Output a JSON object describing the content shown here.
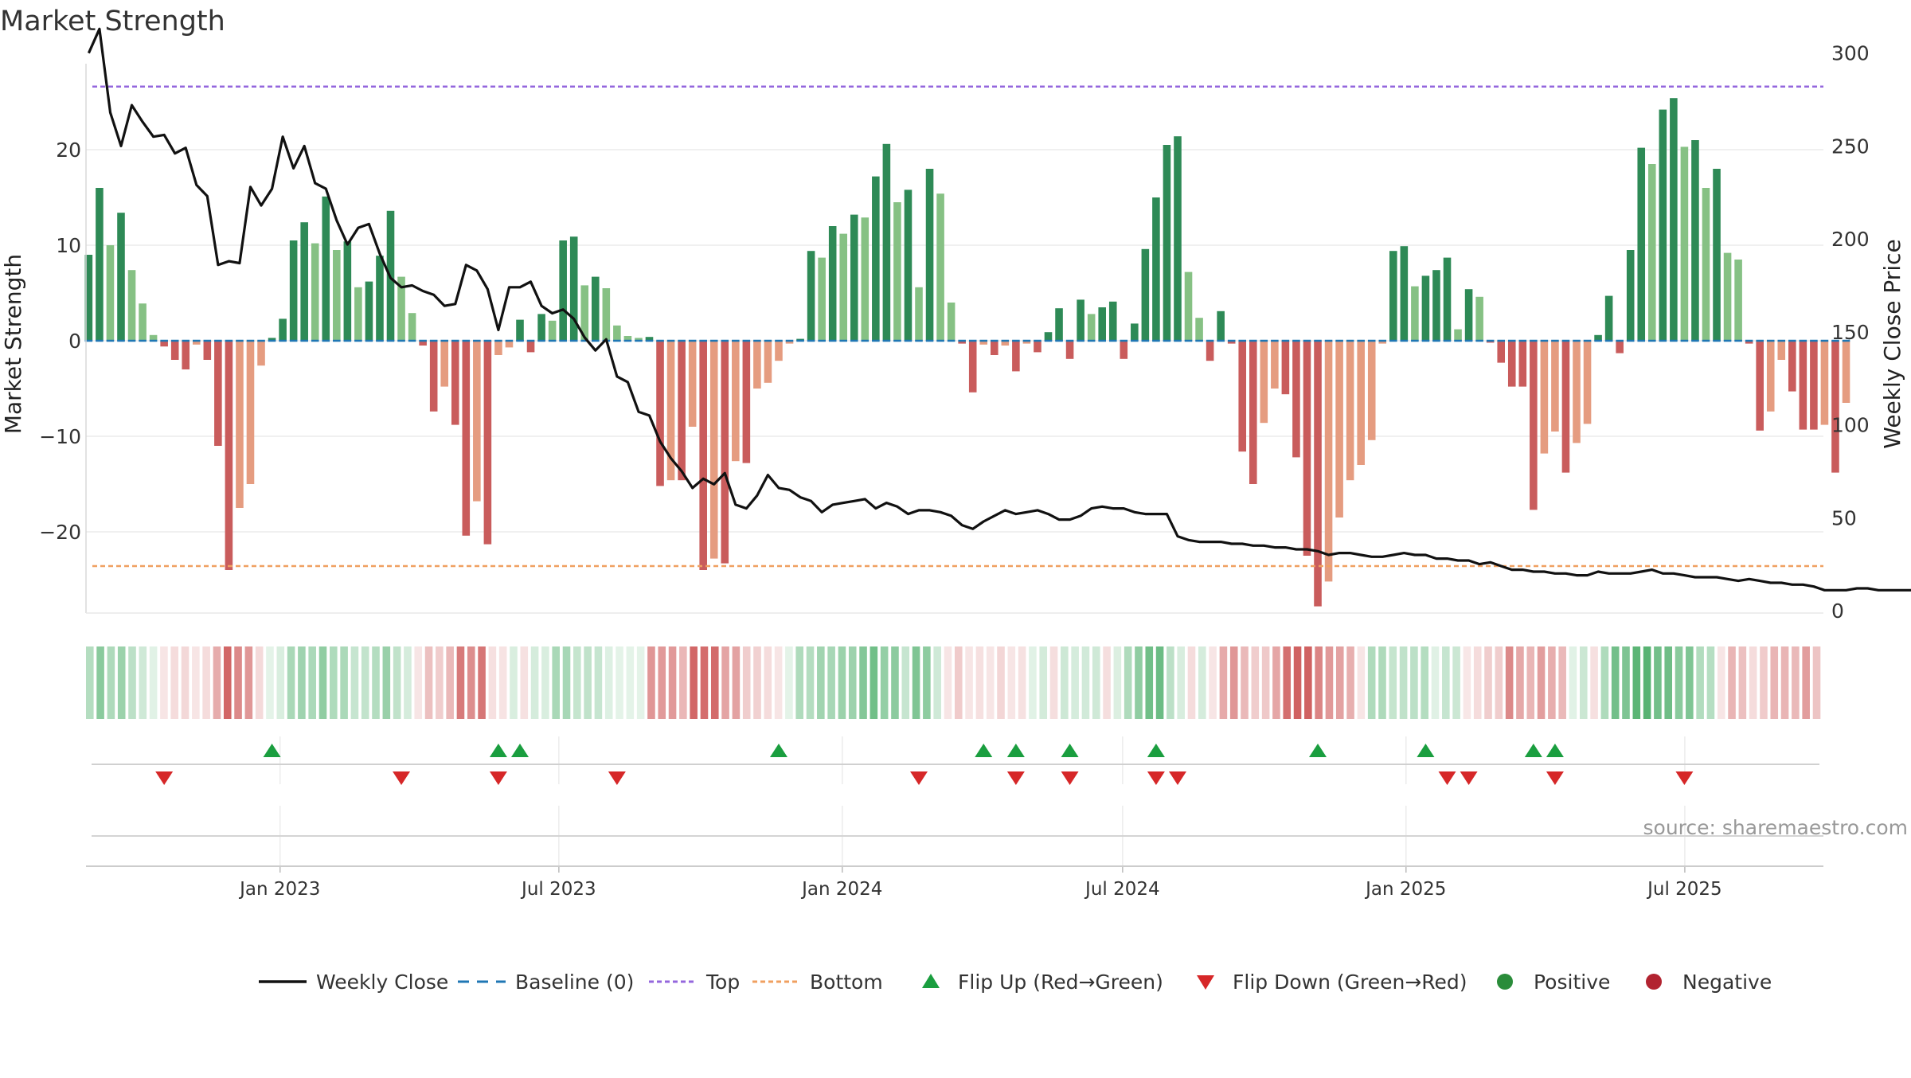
{
  "chart_data": {
    "type": "bar",
    "title": "Market Strength",
    "ylabel_left": "Market Strength",
    "ylabel_right": "Weekly Close Price",
    "ylim_left": [
      -28.5,
      29
    ],
    "ylim_right": [
      0,
      320
    ],
    "yticks_left": [
      20,
      10,
      0,
      -10,
      -20
    ],
    "ytick_labels_left": [
      "20",
      "10",
      "0",
      "−10",
      "−20"
    ],
    "yticks_right": [
      300,
      250,
      200,
      150,
      100,
      50,
      0
    ],
    "x_start": "2022-08-28",
    "x_end": "2025-09-29",
    "x_tick_dates": [
      "2023-01-01",
      "2023-07-01",
      "2024-01-01",
      "2024-07-01",
      "2025-01-01",
      "2025-07-01"
    ],
    "x_tick_labels": [
      "Jan 2023",
      "Jul 2023",
      "Jan 2024",
      "Jul 2024",
      "Jan 2025",
      "Jul 2025"
    ],
    "first_week": "2022-08-29",
    "strength": [
      9,
      16,
      10,
      13.4,
      7.4,
      3.9,
      0.6,
      -0.6,
      -2,
      -3,
      -0.4,
      -2,
      -11,
      -24,
      -17.5,
      -15,
      -2.6,
      0.3,
      2.3,
      10.5,
      12.4,
      10.2,
      15.1,
      9.5,
      10.4,
      5.6,
      6.2,
      8.9,
      13.6,
      6.7,
      2.9,
      -0.5,
      -7.4,
      -4.8,
      -8.8,
      -20.4,
      -16.8,
      -21.3,
      -1.5,
      -0.7,
      2.2,
      -1.2,
      2.8,
      2.1,
      10.5,
      10.9,
      5.8,
      6.7,
      5.5,
      1.6,
      0.5,
      0.3,
      0.4,
      -15.2,
      -14.6,
      -14.6,
      -9,
      -24,
      -22.8,
      -23.3,
      -12.6,
      -12.8,
      -5,
      -4.4,
      -2.1,
      -0.3,
      0.2,
      9.4,
      8.7,
      12,
      11.2,
      13.2,
      12.9,
      17.2,
      20.6,
      14.5,
      15.8,
      5.6,
      18,
      15.4,
      4,
      -0.3,
      -5.4,
      -0.4,
      -1.5,
      -0.5,
      -3.2,
      -0.3,
      -1.2,
      0.9,
      3.4,
      -1.9,
      4.3,
      2.8,
      3.5,
      4.1,
      -1.9,
      1.8,
      9.6,
      15,
      20.5,
      21.4,
      7.2,
      2.4,
      -2.1,
      3.1,
      -0.3,
      -11.6,
      -15,
      -8.6,
      -5,
      -5.6,
      -12.2,
      -22.5,
      -27.8,
      -25.2,
      -18.5,
      -14.6,
      -13,
      -10.4,
      -0.3,
      9.4,
      9.9,
      5.7,
      6.8,
      7.4,
      8.7,
      1.2,
      5.4,
      4.6,
      -0.2,
      -2.3,
      -4.8,
      -4.8,
      -17.7,
      -11.8,
      -9.5,
      -13.8,
      -10.7,
      -8.7,
      0.6,
      4.7,
      -1.3,
      9.5,
      20.2,
      18.5,
      24.2,
      25.4,
      20.3,
      21,
      16,
      18,
      9.2,
      8.5,
      -0.3,
      -9.4,
      -7.4,
      -2,
      -5.3,
      -9.3,
      -9.3,
      -8.8,
      -13.8,
      -6.5
    ],
    "weekly_close": [
      300,
      313,
      268,
      250,
      272,
      263,
      255,
      256,
      246,
      249,
      229,
      223,
      186,
      188,
      187,
      228,
      218,
      227,
      255,
      238,
      250,
      230,
      227,
      210,
      197,
      206,
      208,
      192,
      179,
      174,
      175,
      172,
      170,
      164,
      165,
      186,
      183,
      173,
      151,
      174,
      174,
      177,
      164,
      160,
      162,
      157,
      147,
      140,
      146,
      126,
      123,
      107,
      105,
      91,
      82,
      75,
      66,
      71,
      68,
      74,
      57,
      55,
      62,
      73,
      66,
      65,
      61,
      59,
      53,
      57,
      58,
      59,
      60,
      55,
      58,
      56,
      52,
      54,
      54,
      53,
      51,
      46,
      44,
      48,
      51,
      54,
      52,
      53,
      54,
      52,
      49,
      49,
      51,
      55,
      56,
      55,
      55,
      53,
      52,
      52,
      52,
      40,
      38,
      37,
      37,
      37,
      36,
      36,
      35,
      35,
      34,
      34,
      33,
      33,
      32,
      30,
      31,
      31,
      30,
      29,
      29,
      30,
      31,
      30,
      30,
      28,
      28,
      27,
      27,
      25,
      26,
      24,
      22,
      22,
      21,
      21,
      20,
      20,
      19,
      19,
      21,
      20,
      20,
      20,
      21,
      22,
      20,
      20,
      19,
      18,
      18,
      18,
      17,
      16,
      17,
      16,
      15,
      15,
      14,
      14,
      13,
      11,
      11,
      11,
      12,
      12,
      11,
      11,
      11,
      11,
      11
    ],
    "top_line": 282,
    "bottom_line": 24,
    "flip_up_weeks": [
      17,
      38,
      40,
      64,
      83,
      86,
      91,
      99,
      114,
      124,
      134,
      136
    ],
    "flip_down_weeks": [
      7,
      29,
      38,
      49,
      77,
      86,
      91,
      99,
      101,
      126,
      128,
      136,
      148
    ],
    "source_text": "source: sharemaestro.com",
    "legend": [
      {
        "label": "Weekly Close",
        "icon": "solid-line",
        "color": "#111111"
      },
      {
        "label": "Baseline (0)",
        "icon": "dashed-line",
        "color": "#1f77b4"
      },
      {
        "label": "Top",
        "icon": "dotted-line",
        "color": "#9467dd"
      },
      {
        "label": "Bottom",
        "icon": "dotted-line",
        "color": "#f0a060"
      },
      {
        "label": "Flip Up (Red→Green)",
        "icon": "triangle-up",
        "color": "#1a9e3f"
      },
      {
        "label": "Flip Down (Green→Red)",
        "icon": "triangle-down",
        "color": "#d62728"
      },
      {
        "label": "Positive",
        "icon": "circle",
        "color": "#2a8c3a"
      },
      {
        "label": "Negative",
        "icon": "circle",
        "color": "#b22330"
      }
    ],
    "colors": {
      "bar_strong_positive": "#2e8a56",
      "bar_weak_positive": "#86c184",
      "bar_strong_negative": "#c95c5c",
      "bar_weak_negative": "#e59c80",
      "baseline": "#1f77b4",
      "top": "#9467dd",
      "bottom": "#f0a060",
      "close_line": "#111111",
      "flip_up": "#1a9e3f",
      "flip_down": "#d62728"
    }
  }
}
